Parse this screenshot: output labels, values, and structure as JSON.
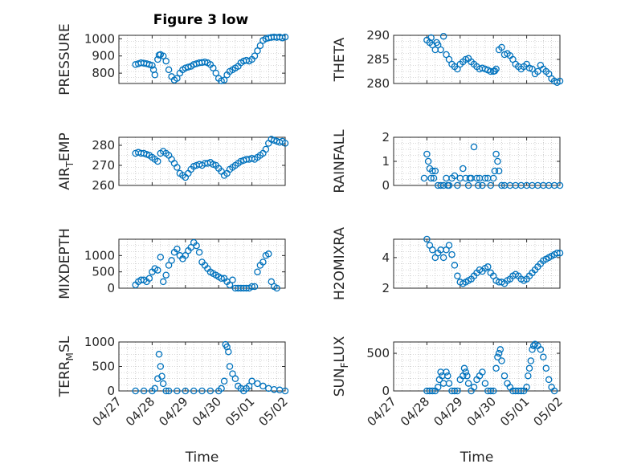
{
  "title": "Figure 3 low",
  "x_axis_label": "Time",
  "x_ticks": [
    "04/27",
    "04/28",
    "04/29",
    "04/30",
    "05/01",
    "05/02"
  ],
  "colors": {
    "marker": "#0072BD",
    "axis": "#262626",
    "grid": "#b0b0b0",
    "background": "#ffffff"
  },
  "chart_data": [
    {
      "type": "scatter",
      "name": "PRESSURE",
      "ylabel": "PRESSURE",
      "ylabel_sub": "",
      "ylim": [
        740,
        1020
      ],
      "yticks": [
        800,
        900,
        1000
      ],
      "x": [
        "04/27 12:00",
        "04/27 14:00",
        "04/27 16:00",
        "04/27 18:00",
        "04/27 20:00",
        "04/27 22:00",
        "04/28 00:00",
        "04/28 01:00",
        "04/28 02:00",
        "04/28 04:00",
        "04/28 05:00",
        "04/28 06:00",
        "04/28 08:00",
        "04/28 10:00",
        "04/28 12:00",
        "04/28 14:00",
        "04/28 16:00",
        "04/28 18:00",
        "04/28 20:00",
        "04/28 22:00",
        "04/29 00:00",
        "04/29 02:00",
        "04/29 04:00",
        "04/29 06:00",
        "04/29 08:00",
        "04/29 10:00",
        "04/29 12:00",
        "04/29 14:00",
        "04/29 16:00",
        "04/29 18:00",
        "04/29 20:00",
        "04/29 22:00",
        "04/30 00:00",
        "04/30 02:00",
        "04/30 04:00",
        "04/30 06:00",
        "04/30 08:00",
        "04/30 10:00",
        "04/30 12:00",
        "04/30 14:00",
        "04/30 16:00",
        "04/30 18:00",
        "04/30 20:00",
        "04/30 22:00",
        "05/01 00:00",
        "05/01 02:00",
        "05/01 04:00",
        "05/01 06:00",
        "05/01 08:00",
        "05/01 10:00",
        "05/01 12:00",
        "05/01 14:00",
        "05/01 16:00",
        "05/01 18:00",
        "05/01 20:00",
        "05/01 22:00",
        "05/02 00:00"
      ],
      "y": [
        850,
        855,
        860,
        858,
        855,
        850,
        845,
        820,
        790,
        880,
        905,
        908,
        900,
        870,
        820,
        780,
        760,
        770,
        800,
        820,
        830,
        835,
        840,
        850,
        855,
        860,
        862,
        865,
        860,
        850,
        830,
        800,
        770,
        755,
        760,
        790,
        810,
        820,
        830,
        840,
        860,
        870,
        875,
        870,
        880,
        900,
        930,
        960,
        990,
        1000,
        1005,
        1008,
        1010,
        1008,
        1010,
        1005,
        1010
      ]
    },
    {
      "type": "scatter",
      "name": "THETA",
      "ylabel": "THETA",
      "ylabel_sub": "",
      "ylim": [
        280,
        290
      ],
      "yticks": [
        280,
        285,
        290
      ],
      "x": [
        "04/28 00:00",
        "04/28 02:00",
        "04/28 03:00",
        "04/28 04:00",
        "04/28 06:00",
        "04/28 07:00",
        "04/28 08:00",
        "04/28 10:00",
        "04/28 12:00",
        "04/28 14:00",
        "04/28 16:00",
        "04/28 18:00",
        "04/28 20:00",
        "04/28 22:00",
        "04/29 00:00",
        "04/29 02:00",
        "04/29 04:00",
        "04/29 06:00",
        "04/29 08:00",
        "04/29 10:00",
        "04/29 12:00",
        "04/29 14:00",
        "04/29 16:00",
        "04/29 18:00",
        "04/29 20:00",
        "04/29 22:00",
        "04/30 00:00",
        "04/30 01:00",
        "04/30 02:00",
        "04/30 04:00",
        "04/30 06:00",
        "04/30 08:00",
        "04/30 10:00",
        "04/30 12:00",
        "04/30 14:00",
        "04/30 16:00",
        "04/30 18:00",
        "04/30 20:00",
        "04/30 22:00",
        "05/01 00:00",
        "05/01 02:00",
        "05/01 04:00",
        "05/01 06:00",
        "05/01 08:00",
        "05/01 10:00",
        "05/01 12:00",
        "05/01 14:00",
        "05/01 16:00",
        "05/01 18:00",
        "05/01 20:00",
        "05/01 22:00",
        "05/02 00:00"
      ],
      "y": [
        289,
        288.5,
        289.5,
        288,
        287,
        288.5,
        288,
        287,
        289.8,
        286,
        285,
        284,
        283.5,
        283,
        284,
        284.5,
        285,
        285.2,
        284.5,
        284,
        283.5,
        283,
        283.2,
        283,
        282.8,
        282.5,
        282.5,
        282.6,
        283,
        287,
        287.5,
        286,
        286.2,
        285.8,
        285,
        284,
        283.5,
        283,
        283.5,
        284,
        283.2,
        283,
        282,
        282.5,
        283.8,
        283,
        282.5,
        282,
        281,
        280.5,
        280.2,
        280.5
      ]
    },
    {
      "type": "scatter",
      "name": "AIR_TEMP",
      "ylabel": "AIR",
      "ylabel_sub": "T",
      "ylabel_rest": "EMP",
      "ylim": [
        260,
        284
      ],
      "yticks": [
        260,
        270,
        280
      ],
      "x": [
        "04/27 12:00",
        "04/27 14:00",
        "04/27 16:00",
        "04/27 18:00",
        "04/27 20:00",
        "04/27 22:00",
        "04/28 00:00",
        "04/28 02:00",
        "04/28 04:00",
        "04/28 06:00",
        "04/28 08:00",
        "04/28 10:00",
        "04/28 12:00",
        "04/28 14:00",
        "04/28 16:00",
        "04/28 18:00",
        "04/28 20:00",
        "04/28 22:00",
        "04/29 00:00",
        "04/29 02:00",
        "04/29 04:00",
        "04/29 06:00",
        "04/29 08:00",
        "04/29 10:00",
        "04/29 12:00",
        "04/29 14:00",
        "04/29 16:00",
        "04/29 18:00",
        "04/29 20:00",
        "04/29 22:00",
        "04/30 00:00",
        "04/30 02:00",
        "04/30 04:00",
        "04/30 06:00",
        "04/30 08:00",
        "04/30 10:00",
        "04/30 12:00",
        "04/30 14:00",
        "04/30 16:00",
        "04/30 18:00",
        "04/30 20:00",
        "04/30 22:00",
        "05/01 00:00",
        "05/01 02:00",
        "05/01 04:00",
        "05/01 06:00",
        "05/01 08:00",
        "05/01 10:00",
        "05/01 12:00",
        "05/01 14:00",
        "05/01 16:00",
        "05/01 18:00",
        "05/01 20:00",
        "05/01 22:00",
        "05/02 00:00"
      ],
      "y": [
        276,
        276.5,
        276,
        276,
        275.5,
        275,
        274,
        273,
        272,
        276,
        277,
        276,
        275,
        273,
        271,
        269,
        266,
        265,
        264,
        266,
        268,
        269.5,
        270,
        270.5,
        270,
        271,
        271,
        271.5,
        270.5,
        270,
        268.5,
        267,
        265,
        266,
        268,
        269,
        270,
        271,
        272,
        272.5,
        273,
        273,
        273.5,
        273,
        274,
        275,
        276,
        278,
        281,
        283,
        282.5,
        282,
        281.5,
        282,
        281
      ]
    },
    {
      "type": "scatter",
      "name": "RAINFALL",
      "ylabel": "RAINFALL",
      "ylabel_sub": "",
      "ylim": [
        0,
        2
      ],
      "yticks": [
        0,
        1,
        2
      ],
      "x": [
        "04/27 22:00",
        "04/28 00:00",
        "04/28 01:00",
        "04/28 02:00",
        "04/28 03:00",
        "04/28 04:00",
        "04/28 05:00",
        "04/28 06:00",
        "04/28 08:00",
        "04/28 10:00",
        "04/28 12:00",
        "04/28 14:00",
        "04/28 15:00",
        "04/28 16:00",
        "04/28 18:00",
        "04/28 20:00",
        "04/28 22:00",
        "04/29 00:00",
        "04/29 02:00",
        "04/29 04:00",
        "04/29 06:00",
        "04/29 07:00",
        "04/29 08:00",
        "04/29 10:00",
        "04/29 12:00",
        "04/29 13:00",
        "04/29 14:00",
        "04/29 16:00",
        "04/29 18:00",
        "04/29 20:00",
        "04/29 22:00",
        "04/30 00:00",
        "04/30 01:00",
        "04/30 02:00",
        "04/30 03:00",
        "04/30 04:00",
        "04/30 06:00",
        "04/30 08:00",
        "04/30 12:00",
        "04/30 16:00",
        "04/30 20:00",
        "05/01 00:00",
        "05/01 04:00",
        "05/01 08:00",
        "05/01 12:00",
        "05/01 16:00",
        "05/01 20:00",
        "05/02 00:00"
      ],
      "y": [
        0.3,
        1.3,
        1.0,
        0.7,
        0.3,
        0.6,
        0.3,
        0.6,
        0,
        0,
        0,
        0.3,
        0,
        0,
        0.3,
        0.4,
        0,
        0.3,
        0.7,
        0.3,
        0,
        0.3,
        0.3,
        1.6,
        0.3,
        0,
        0.3,
        0,
        0.3,
        0.3,
        0,
        0.3,
        0.6,
        1.3,
        1.0,
        0.6,
        0,
        0,
        0,
        0,
        0,
        0,
        0,
        0,
        0,
        0,
        0,
        0
      ]
    },
    {
      "type": "scatter",
      "name": "MIXDEPTH",
      "ylabel": "MIXDEPTH",
      "ylabel_sub": "",
      "ylim": [
        0,
        1500
      ],
      "yticks": [
        0,
        500,
        1000
      ],
      "x": [
        "04/27 12:00",
        "04/27 14:00",
        "04/27 16:00",
        "04/27 18:00",
        "04/27 20:00",
        "04/27 22:00",
        "04/28 00:00",
        "04/28 02:00",
        "04/28 04:00",
        "04/28 06:00",
        "04/28 08:00",
        "04/28 10:00",
        "04/28 12:00",
        "04/28 14:00",
        "04/28 16:00",
        "04/28 18:00",
        "04/28 20:00",
        "04/28 22:00",
        "04/29 00:00",
        "04/29 02:00",
        "04/29 04:00",
        "04/29 06:00",
        "04/29 08:00",
        "04/29 10:00",
        "04/29 12:00",
        "04/29 14:00",
        "04/29 16:00",
        "04/29 18:00",
        "04/29 20:00",
        "04/29 22:00",
        "04/30 00:00",
        "04/30 02:00",
        "04/30 04:00",
        "04/30 06:00",
        "04/30 08:00",
        "04/30 10:00",
        "04/30 12:00",
        "04/30 14:00",
        "04/30 16:00",
        "04/30 18:00",
        "04/30 20:00",
        "04/30 22:00",
        "05/01 00:00",
        "05/01 02:00",
        "05/01 04:00",
        "05/01 06:00",
        "05/01 08:00",
        "05/01 10:00",
        "05/01 12:00",
        "05/01 14:00",
        "05/01 16:00",
        "05/01 18:00"
      ],
      "y": [
        100,
        200,
        250,
        250,
        200,
        300,
        500,
        600,
        550,
        950,
        200,
        400,
        700,
        850,
        1100,
        1200,
        1000,
        900,
        1000,
        1150,
        1250,
        1400,
        1300,
        1100,
        800,
        700,
        600,
        500,
        450,
        400,
        350,
        300,
        300,
        200,
        100,
        250,
        0,
        0,
        0,
        0,
        0,
        0,
        50,
        50,
        500,
        700,
        800,
        1000,
        1050,
        200,
        50,
        0
      ]
    },
    {
      "type": "scatter",
      "name": "H2OMIXRA",
      "ylabel": "H2OMIXRA",
      "ylabel_sub": "",
      "ylim": [
        2,
        5.2
      ],
      "yticks": [
        2,
        4
      ],
      "x": [
        "04/28 00:00",
        "04/28 02:00",
        "04/28 04:00",
        "04/28 06:00",
        "04/28 08:00",
        "04/28 10:00",
        "04/28 12:00",
        "04/28 14:00",
        "04/28 16:00",
        "04/28 18:00",
        "04/28 20:00",
        "04/28 22:00",
        "04/29 00:00",
        "04/29 02:00",
        "04/29 04:00",
        "04/29 06:00",
        "04/29 08:00",
        "04/29 10:00",
        "04/29 12:00",
        "04/29 14:00",
        "04/29 16:00",
        "04/29 18:00",
        "04/29 20:00",
        "04/29 22:00",
        "04/30 00:00",
        "04/30 02:00",
        "04/30 04:00",
        "04/30 06:00",
        "04/30 08:00",
        "04/30 10:00",
        "04/30 12:00",
        "04/30 14:00",
        "04/30 16:00",
        "04/30 18:00",
        "04/30 20:00",
        "04/30 22:00",
        "05/01 00:00",
        "05/01 02:00",
        "05/01 04:00",
        "05/01 06:00",
        "05/01 08:00",
        "05/01 10:00",
        "05/01 12:00",
        "05/01 14:00",
        "05/01 16:00",
        "05/01 18:00",
        "05/01 20:00",
        "05/01 22:00",
        "05/02 00:00"
      ],
      "y": [
        5.2,
        4.8,
        4.5,
        4.0,
        4.3,
        4.5,
        4.0,
        4.5,
        4.8,
        4.2,
        3.5,
        2.8,
        2.4,
        2.3,
        2.4,
        2.5,
        2.6,
        2.8,
        3.0,
        3.2,
        3.1,
        3.3,
        3.4,
        3.0,
        2.8,
        2.5,
        2.4,
        2.4,
        2.3,
        2.5,
        2.6,
        2.8,
        2.9,
        2.8,
        2.6,
        2.5,
        2.6,
        2.8,
        3.0,
        3.2,
        3.4,
        3.6,
        3.8,
        3.9,
        4.0,
        4.1,
        4.2,
        4.3,
        4.3
      ]
    },
    {
      "type": "scatter",
      "name": "TERR_MSL",
      "ylabel": "TERR",
      "ylabel_sub": "M",
      "ylabel_rest": "SL",
      "ylim": [
        0,
        1000
      ],
      "yticks": [
        0,
        500,
        1000
      ],
      "x": [
        "04/27 12:00",
        "04/27 18:00",
        "04/28 00:00",
        "04/28 02:00",
        "04/28 04:00",
        "04/28 05:00",
        "04/28 06:00",
        "04/28 07:00",
        "04/28 08:00",
        "04/28 10:00",
        "04/28 12:00",
        "04/28 18:00",
        "04/29 00:00",
        "04/29 06:00",
        "04/29 12:00",
        "04/29 18:00",
        "04/30 00:00",
        "04/30 02:00",
        "04/30 04:00",
        "04/30 05:00",
        "04/30 06:00",
        "04/30 07:00",
        "04/30 08:00",
        "04/30 10:00",
        "04/30 12:00",
        "04/30 14:00",
        "04/30 16:00",
        "04/30 18:00",
        "04/30 20:00",
        "04/30 22:00",
        "05/01 00:00",
        "05/01 04:00",
        "05/01 08:00",
        "05/01 12:00",
        "05/01 16:00",
        "05/01 20:00",
        "05/02 00:00"
      ],
      "y": [
        0,
        0,
        0,
        50,
        250,
        750,
        500,
        300,
        150,
        0,
        0,
        0,
        0,
        0,
        0,
        0,
        0,
        50,
        200,
        950,
        900,
        800,
        500,
        350,
        250,
        100,
        50,
        0,
        50,
        100,
        200,
        150,
        100,
        50,
        30,
        20,
        0
      ]
    },
    {
      "type": "scatter",
      "name": "SUN_FLUX",
      "ylabel": "SUN",
      "ylabel_sub": "F",
      "ylabel_rest": "LUX",
      "ylim": [
        0,
        650
      ],
      "yticks": [
        0,
        500
      ],
      "x": [
        "04/28 00:00",
        "04/28 02:00",
        "04/28 04:00",
        "04/28 06:00",
        "04/28 08:00",
        "04/28 09:00",
        "04/28 10:00",
        "04/28 11:00",
        "04/28 12:00",
        "04/28 14:00",
        "04/28 15:00",
        "04/28 16:00",
        "04/28 18:00",
        "04/28 20:00",
        "04/28 22:00",
        "04/29 00:00",
        "04/29 02:00",
        "04/29 03:00",
        "04/29 04:00",
        "04/29 05:00",
        "04/29 06:00",
        "04/29 08:00",
        "04/29 10:00",
        "04/29 12:00",
        "04/29 14:00",
        "04/29 16:00",
        "04/29 18:00",
        "04/29 20:00",
        "04/29 22:00",
        "04/30 00:00",
        "04/30 02:00",
        "04/30 03:00",
        "04/30 04:00",
        "04/30 05:00",
        "04/30 06:00",
        "04/30 08:00",
        "04/30 10:00",
        "04/30 12:00",
        "04/30 14:00",
        "04/30 16:00",
        "04/30 18:00",
        "04/30 20:00",
        "04/30 22:00",
        "05/01 00:00",
        "05/01 01:00",
        "05/01 02:00",
        "05/01 03:00",
        "05/01 04:00",
        "05/01 05:00",
        "05/01 06:00",
        "05/01 08:00",
        "05/01 10:00",
        "05/01 12:00",
        "05/01 14:00",
        "05/01 16:00",
        "05/01 18:00",
        "05/01 20:00"
      ],
      "y": [
        0,
        0,
        0,
        0,
        50,
        150,
        250,
        200,
        100,
        250,
        200,
        100,
        0,
        0,
        0,
        150,
        200,
        300,
        250,
        200,
        100,
        0,
        50,
        150,
        200,
        250,
        100,
        0,
        0,
        0,
        300,
        450,
        500,
        550,
        400,
        200,
        100,
        50,
        0,
        0,
        0,
        0,
        0,
        50,
        200,
        300,
        400,
        550,
        600,
        620,
        600,
        550,
        450,
        300,
        150,
        50,
        0
      ]
    }
  ]
}
